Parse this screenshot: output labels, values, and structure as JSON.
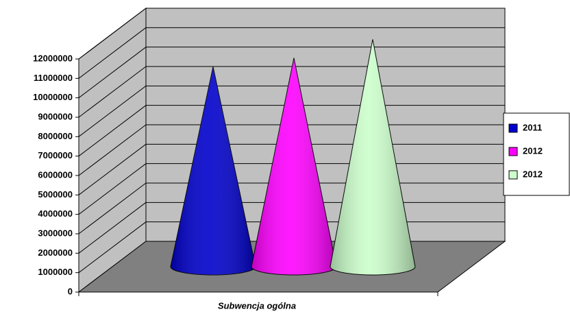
{
  "chart_data": {
    "type": "cone",
    "categories": [
      "Subwencja ogólna"
    ],
    "series": [
      {
        "name": "2011",
        "color": "#0000cc",
        "values": [
          10300000
        ]
      },
      {
        "name": "2012",
        "color": "#ff00ff",
        "values": [
          10750000
        ]
      },
      {
        "name": "2012",
        "color": "#ccffcc",
        "values": [
          11700000
        ]
      }
    ],
    "ylim": [
      0,
      12000000
    ],
    "yticks": [
      0,
      1000000,
      2000000,
      3000000,
      4000000,
      5000000,
      6000000,
      7000000,
      8000000,
      9000000,
      10000000,
      11000000,
      12000000
    ],
    "grid": true,
    "legend": "right"
  }
}
